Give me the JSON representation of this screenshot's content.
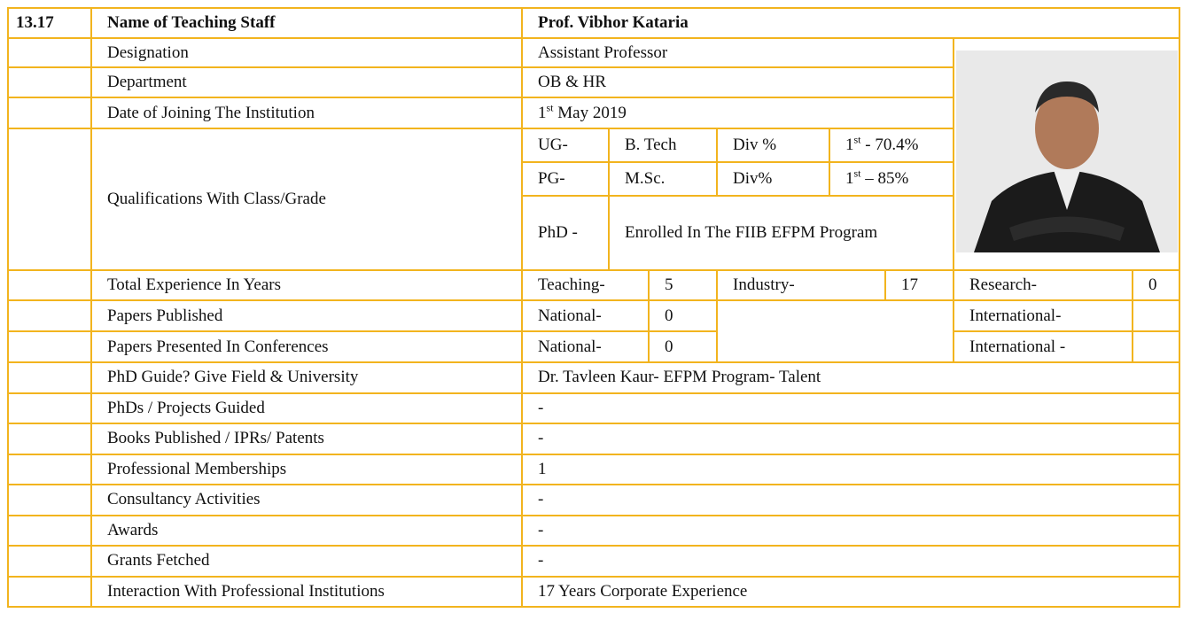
{
  "header": {
    "number": "13.17",
    "label": "Name of Teaching Staff",
    "name": "Prof. Vibhor Kataria"
  },
  "designation": {
    "label": "Designation",
    "value": "Assistant Professor"
  },
  "department": {
    "label": "Department",
    "value": "OB & HR"
  },
  "joining": {
    "label": "Date of Joining The Institution",
    "value": {
      "base": "1",
      "sup": "st",
      "rest": " May 2019"
    }
  },
  "qualifications": {
    "label": "Qualifications With Class/Grade",
    "ug": {
      "level": "UG-",
      "degree": "B. Tech",
      "div": "Div %",
      "grade": {
        "base": "1",
        "sup": "st",
        "rest": " - 70.4%"
      }
    },
    "pg": {
      "level": "PG-",
      "degree": "M.Sc.",
      "div": "Div%",
      "grade": {
        "base": "1",
        "sup": "st",
        "rest": " – 85%"
      }
    },
    "phd": {
      "level": "PhD -",
      "degree": "Enrolled In The FIIB EFPM Program"
    }
  },
  "experience": {
    "label": "Total Experience In Years",
    "teaching_label": "Teaching-",
    "teaching": 5,
    "industry_label": "Industry-",
    "industry": 17,
    "research_label": "Research-",
    "research": 0
  },
  "papers_published": {
    "label": "Papers Published",
    "national_label": "National-",
    "national": 0,
    "international_label": "International-"
  },
  "papers_presented": {
    "label": "Papers Presented In Conferences",
    "national_label": "National-",
    "national": 0,
    "international_label": "International -"
  },
  "rows": [
    {
      "label": "PhD Guide? Give Field & University",
      "value": "Dr. Tavleen Kaur- EFPM Program- Talent"
    },
    {
      "label": "PhDs / Projects Guided",
      "value": "-"
    },
    {
      "label": "Books Published / IPRs/ Patents",
      "value": "-"
    },
    {
      "label": "Professional Memberships",
      "value": "1"
    },
    {
      "label": "Consultancy Activities",
      "value": "-"
    },
    {
      "label": "Awards",
      "value": "-"
    },
    {
      "label": "Grants Fetched",
      "value": "-"
    },
    {
      "label": "Interaction With Professional Institutions",
      "value": "17 Years Corporate Experience"
    }
  ]
}
